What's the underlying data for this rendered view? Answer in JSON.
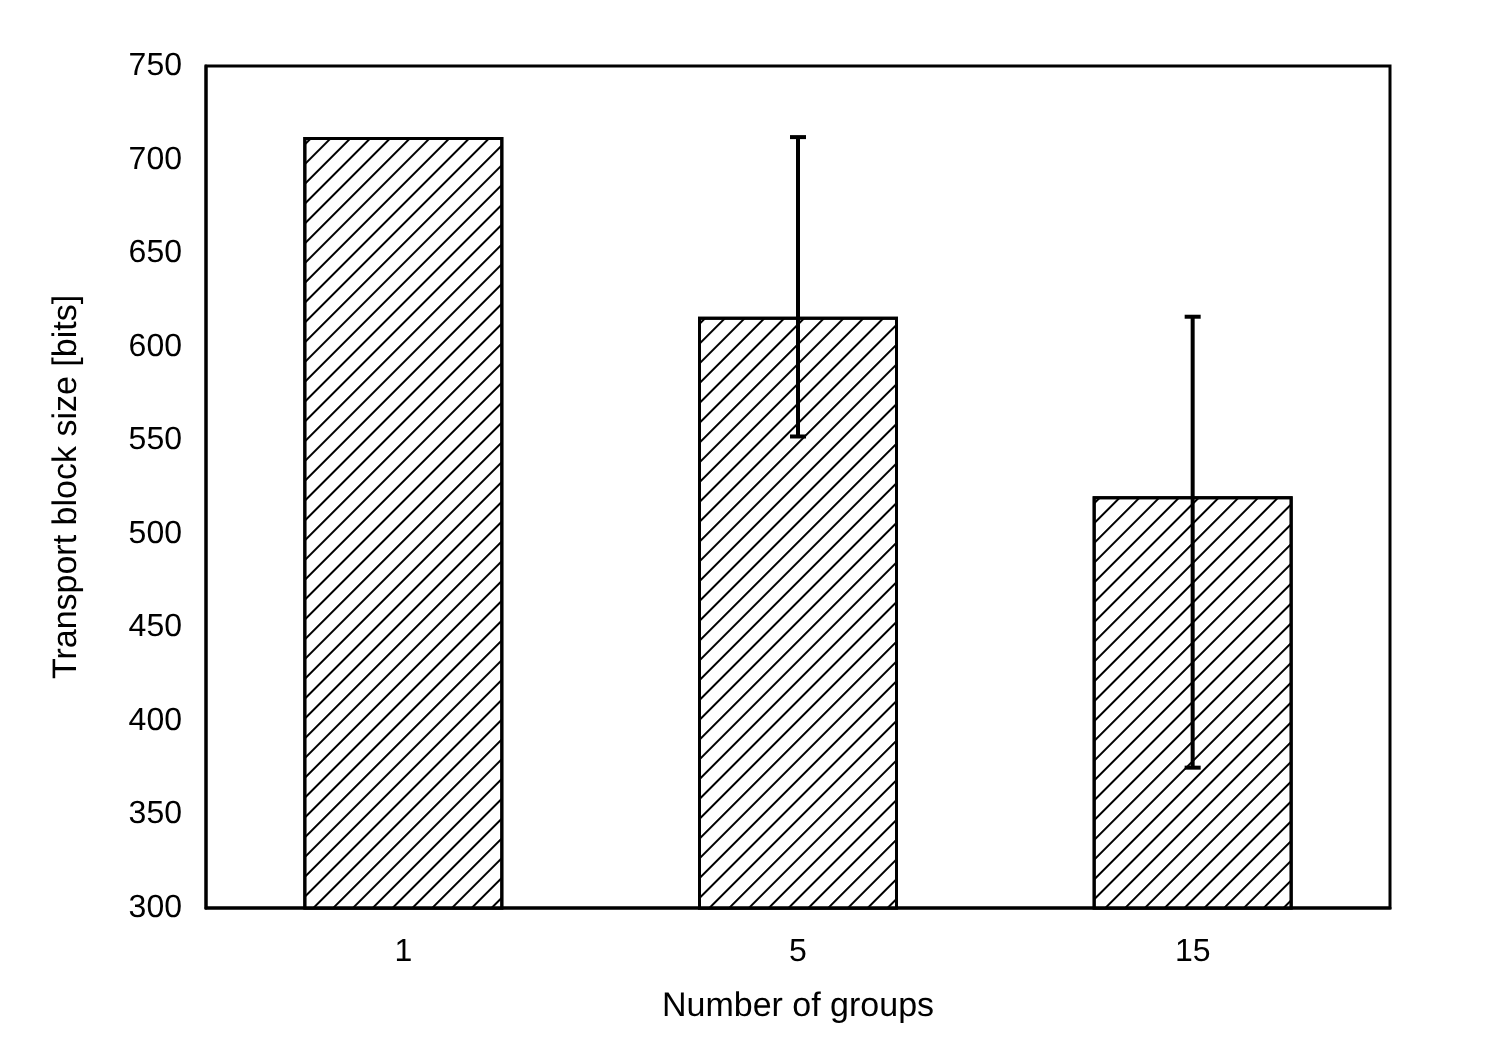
{
  "chart_data": {
    "type": "bar",
    "xlabel": "Number of groups",
    "ylabel": "Transport block size [bits]",
    "categories": [
      "1",
      "5",
      "15"
    ],
    "values": [
      712,
      616,
      520
    ],
    "errors": [
      null,
      [
        552,
        712
      ],
      [
        375,
        616
      ]
    ],
    "color": "#000000",
    "ylim": [
      300,
      750
    ],
    "yticks": [
      300,
      350,
      400,
      450,
      500,
      550,
      600,
      650,
      700,
      750
    ],
    "grid": false
  }
}
